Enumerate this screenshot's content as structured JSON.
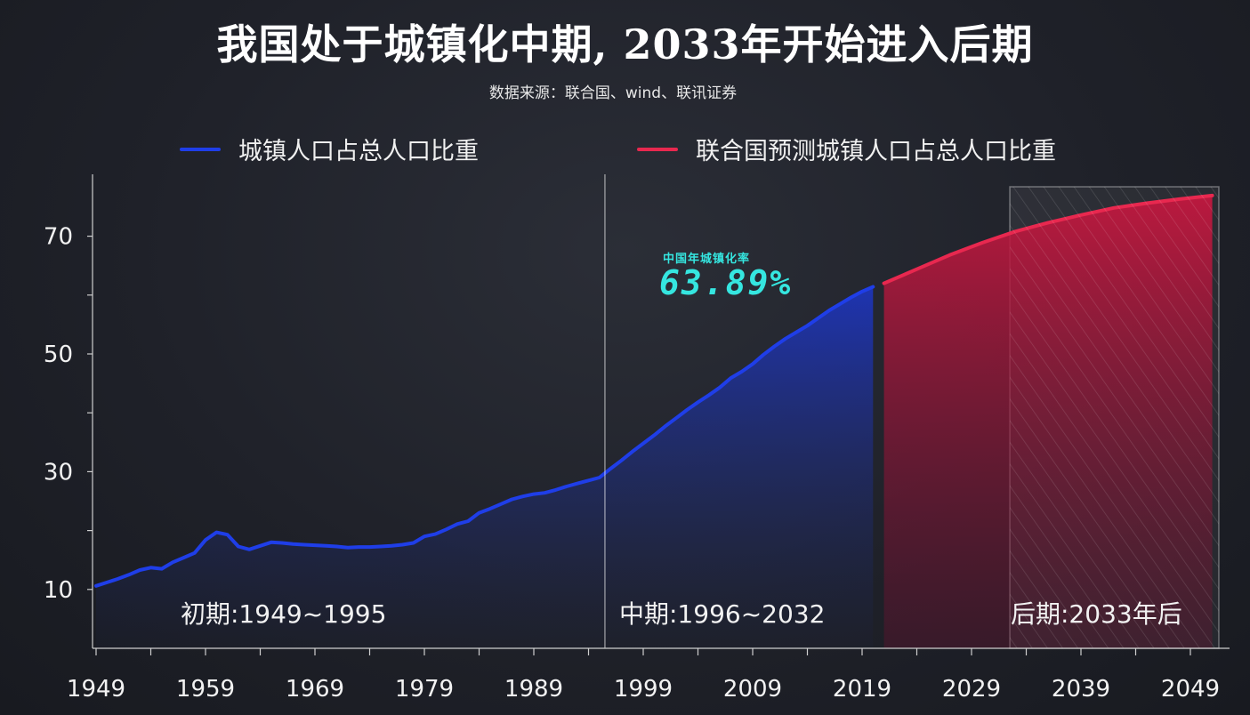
{
  "title": "我国处于城镇化中期, 2033年开始进入后期",
  "subtitle": "数据来源：联合国、wind、联讯证券",
  "colors": {
    "series_actual": "#1f3ee8",
    "series_forecast": "#e8284f",
    "callout": "#35e6e0"
  },
  "callout": {
    "label": "中国年城镇化率",
    "value": "63.89%"
  },
  "phases": [
    {
      "label": "初期:1949~1995"
    },
    {
      "label": "中期:1996~2032"
    },
    {
      "label": "后期:2033年后"
    }
  ],
  "chart_data": {
    "type": "area",
    "title": "我国处于城镇化中期, 2033年开始进入后期",
    "xlabel": "",
    "ylabel": "",
    "xlim": [
      1949,
      2053
    ],
    "ylim": [
      0,
      80
    ],
    "x_ticks": [
      1949,
      1959,
      1969,
      1979,
      1989,
      1999,
      2009,
      2019,
      2029,
      2039,
      2049
    ],
    "y_ticks": [
      10,
      30,
      50,
      70
    ],
    "phase_boundaries": [
      1995.5,
      2032.5
    ],
    "grid": false,
    "legend_position": "top",
    "series": [
      {
        "name": "城镇人口占总人口比重",
        "x": [
          1949,
          1950,
          1951,
          1952,
          1953,
          1954,
          1955,
          1956,
          1957,
          1958,
          1959,
          1960,
          1961,
          1962,
          1963,
          1964,
          1965,
          1966,
          1967,
          1968,
          1969,
          1970,
          1971,
          1972,
          1973,
          1974,
          1975,
          1976,
          1977,
          1978,
          1979,
          1980,
          1981,
          1982,
          1983,
          1984,
          1985,
          1986,
          1987,
          1988,
          1989,
          1990,
          1991,
          1992,
          1993,
          1994,
          1995,
          1996,
          1997,
          1998,
          1999,
          2000,
          2001,
          2002,
          2003,
          2004,
          2005,
          2006,
          2007,
          2008,
          2009,
          2010,
          2011,
          2012,
          2013,
          2014,
          2015,
          2016,
          2017,
          2018,
          2019,
          2020
        ],
        "values": [
          10.6,
          11.2,
          11.8,
          12.5,
          13.3,
          13.7,
          13.5,
          14.6,
          15.4,
          16.2,
          18.4,
          19.7,
          19.3,
          17.3,
          16.8,
          17.4,
          18.0,
          17.9,
          17.7,
          17.6,
          17.5,
          17.4,
          17.3,
          17.1,
          17.2,
          17.2,
          17.3,
          17.4,
          17.6,
          17.9,
          19.0,
          19.4,
          20.2,
          21.1,
          21.6,
          23.0,
          23.7,
          24.5,
          25.3,
          25.8,
          26.2,
          26.4,
          26.9,
          27.5,
          28.0,
          28.5,
          29.0,
          30.5,
          31.9,
          33.4,
          34.8,
          36.2,
          37.7,
          39.1,
          40.5,
          41.8,
          43.0,
          44.3,
          45.9,
          47.0,
          48.3,
          49.9,
          51.3,
          52.6,
          53.7,
          54.8,
          56.1,
          57.4,
          58.5,
          59.6,
          60.6,
          61.4
        ]
      },
      {
        "name": "联合国预测城镇人口占总人口比重",
        "x": [
          2021,
          2024,
          2027,
          2030,
          2033,
          2036,
          2039,
          2042,
          2045,
          2048,
          2051
        ],
        "values": [
          62.0,
          64.4,
          66.8,
          68.9,
          70.8,
          72.3,
          73.6,
          74.8,
          75.6,
          76.3,
          76.9
        ]
      }
    ]
  }
}
